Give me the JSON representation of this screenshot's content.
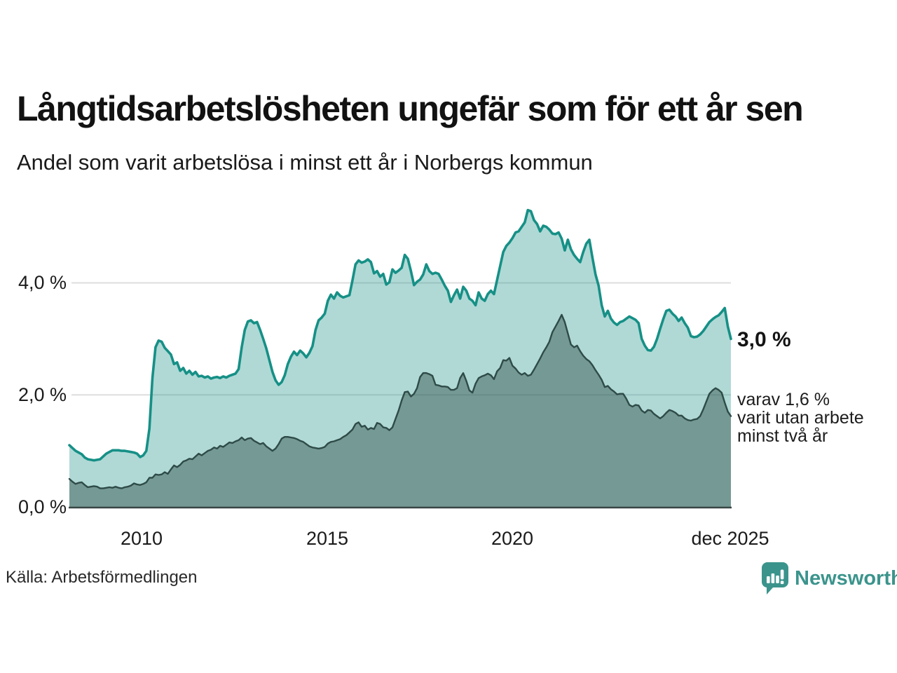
{
  "header": {
    "title": "Långtidsarbetslösheten ungefär som för ett år sen",
    "subtitle": "Andel som varit arbetslösa i minst ett år i Norbergs kommun"
  },
  "chart_data": {
    "type": "area",
    "x_start": "2008-01",
    "x_end": "2025-12",
    "x_interval": "monthly",
    "x_tick_labels": [
      "2010",
      "2015",
      "2020",
      "dec 2025"
    ],
    "y_tick_labels": [
      "0,0 %",
      "2,0 %",
      "4,0 %"
    ],
    "y_ticks": [
      0,
      2,
      4
    ],
    "y_gridlines": [
      2,
      4
    ],
    "ylim": [
      0,
      5.6
    ],
    "grid_on": true,
    "grid_color": "#dedede",
    "axis_color": "#394744",
    "legend_position": "right-annotations",
    "series": [
      {
        "name": "Andel som varit arbetslösa i minst ett år",
        "color": "#169086",
        "fill": "rgba(22,144,134,0.34)",
        "end_value": 3.0,
        "end_label": "3,0 %",
        "values": [
          1.1,
          1.05,
          1.0,
          0.97,
          0.94,
          0.88,
          0.85,
          0.84,
          0.83,
          0.84,
          0.85,
          0.9,
          0.95,
          0.98,
          1.01,
          1.01,
          1.01,
          1.0,
          1.0,
          0.99,
          0.98,
          0.97,
          0.95,
          0.89,
          0.92,
          1.0,
          1.4,
          2.3,
          2.85,
          2.97,
          2.95,
          2.84,
          2.78,
          2.72,
          2.55,
          2.58,
          2.43,
          2.48,
          2.38,
          2.43,
          2.36,
          2.41,
          2.33,
          2.34,
          2.31,
          2.33,
          2.29,
          2.31,
          2.32,
          2.3,
          2.33,
          2.31,
          2.34,
          2.36,
          2.38,
          2.46,
          2.85,
          3.16,
          3.31,
          3.33,
          3.28,
          3.3,
          3.16,
          3.0,
          2.83,
          2.62,
          2.41,
          2.26,
          2.18,
          2.23,
          2.35,
          2.55,
          2.68,
          2.77,
          2.71,
          2.79,
          2.74,
          2.67,
          2.75,
          2.87,
          3.16,
          3.33,
          3.38,
          3.45,
          3.68,
          3.79,
          3.72,
          3.83,
          3.77,
          3.74,
          3.76,
          3.78,
          4.04,
          4.33,
          4.4,
          4.36,
          4.38,
          4.42,
          4.37,
          4.17,
          4.21,
          4.11,
          4.16,
          3.97,
          4.01,
          4.24,
          4.18,
          4.22,
          4.27,
          4.5,
          4.43,
          4.21,
          3.96,
          4.02,
          4.06,
          4.15,
          4.33,
          4.21,
          4.16,
          4.18,
          4.16,
          4.06,
          3.95,
          3.86,
          3.66,
          3.78,
          3.88,
          3.72,
          3.93,
          3.86,
          3.72,
          3.68,
          3.6,
          3.83,
          3.72,
          3.68,
          3.8,
          3.86,
          3.8,
          4.05,
          4.3,
          4.55,
          4.66,
          4.72,
          4.8,
          4.9,
          4.92,
          5.0,
          5.08,
          5.3,
          5.28,
          5.12,
          5.05,
          4.92,
          5.02,
          5.0,
          4.95,
          4.88,
          4.87,
          4.9,
          4.79,
          4.58,
          4.77,
          4.6,
          4.5,
          4.43,
          4.37,
          4.55,
          4.7,
          4.77,
          4.45,
          4.15,
          3.95,
          3.6,
          3.4,
          3.5,
          3.36,
          3.29,
          3.25,
          3.3,
          3.32,
          3.36,
          3.4,
          3.37,
          3.34,
          3.28,
          3.0,
          2.88,
          2.8,
          2.79,
          2.86,
          3.0,
          3.18,
          3.35,
          3.5,
          3.52,
          3.45,
          3.4,
          3.32,
          3.38,
          3.28,
          3.2,
          3.05,
          3.03,
          3.04,
          3.08,
          3.14,
          3.22,
          3.3,
          3.35,
          3.39,
          3.42,
          3.48,
          3.55,
          3.22,
          3.0
        ]
      },
      {
        "name": "varav utan arbete minst två år",
        "color": "#2e4b47",
        "fill": "rgba(46,75,71,0.45)",
        "end_value": 1.6,
        "end_label": "varav 1,6 % varit utan arbete minst två år",
        "values": [
          0.5,
          0.45,
          0.41,
          0.43,
          0.44,
          0.39,
          0.35,
          0.36,
          0.37,
          0.36,
          0.33,
          0.33,
          0.34,
          0.35,
          0.34,
          0.36,
          0.34,
          0.33,
          0.35,
          0.36,
          0.38,
          0.42,
          0.4,
          0.39,
          0.41,
          0.44,
          0.52,
          0.52,
          0.58,
          0.57,
          0.58,
          0.62,
          0.59,
          0.67,
          0.74,
          0.71,
          0.75,
          0.81,
          0.83,
          0.86,
          0.85,
          0.9,
          0.95,
          0.92,
          0.96,
          1.0,
          1.02,
          1.06,
          1.04,
          1.09,
          1.07,
          1.11,
          1.15,
          1.14,
          1.17,
          1.19,
          1.24,
          1.19,
          1.22,
          1.23,
          1.18,
          1.15,
          1.12,
          1.14,
          1.08,
          1.04,
          1.0,
          1.04,
          1.12,
          1.22,
          1.25,
          1.25,
          1.24,
          1.23,
          1.21,
          1.18,
          1.16,
          1.12,
          1.08,
          1.06,
          1.05,
          1.04,
          1.05,
          1.07,
          1.13,
          1.16,
          1.17,
          1.19,
          1.21,
          1.25,
          1.28,
          1.33,
          1.38,
          1.48,
          1.51,
          1.43,
          1.45,
          1.38,
          1.41,
          1.39,
          1.5,
          1.48,
          1.42,
          1.41,
          1.37,
          1.42,
          1.57,
          1.72,
          1.9,
          2.05,
          2.06,
          1.97,
          2.02,
          2.12,
          2.32,
          2.39,
          2.39,
          2.37,
          2.34,
          2.18,
          2.17,
          2.15,
          2.15,
          2.14,
          2.09,
          2.09,
          2.12,
          2.3,
          2.39,
          2.25,
          2.08,
          2.04,
          2.2,
          2.3,
          2.33,
          2.35,
          2.38,
          2.35,
          2.28,
          2.42,
          2.48,
          2.62,
          2.61,
          2.66,
          2.52,
          2.47,
          2.4,
          2.36,
          2.39,
          2.34,
          2.36,
          2.45,
          2.55,
          2.65,
          2.76,
          2.85,
          2.95,
          3.12,
          3.22,
          3.32,
          3.43,
          3.3,
          3.1,
          2.9,
          2.85,
          2.88,
          2.78,
          2.7,
          2.64,
          2.6,
          2.53,
          2.44,
          2.36,
          2.27,
          2.14,
          2.16,
          2.1,
          2.06,
          2.01,
          2.02,
          2.02,
          1.93,
          1.82,
          1.79,
          1.82,
          1.81,
          1.72,
          1.68,
          1.73,
          1.72,
          1.66,
          1.62,
          1.58,
          1.62,
          1.68,
          1.73,
          1.71,
          1.68,
          1.63,
          1.63,
          1.58,
          1.55,
          1.54,
          1.56,
          1.57,
          1.62,
          1.74,
          1.88,
          2.02,
          2.08,
          2.12,
          2.09,
          2.04,
          1.86,
          1.7,
          1.62
        ]
      }
    ]
  },
  "annotations": {
    "primary_value": "3,0 %",
    "secondary_line1": "varav 1,6 %",
    "secondary_line2": "varit utan arbete",
    "secondary_line3": "minst två år"
  },
  "footer": {
    "source": "Källa: Arbetsförmedlingen",
    "brand": "Newsworthy",
    "brand_color": "#3b948c"
  }
}
